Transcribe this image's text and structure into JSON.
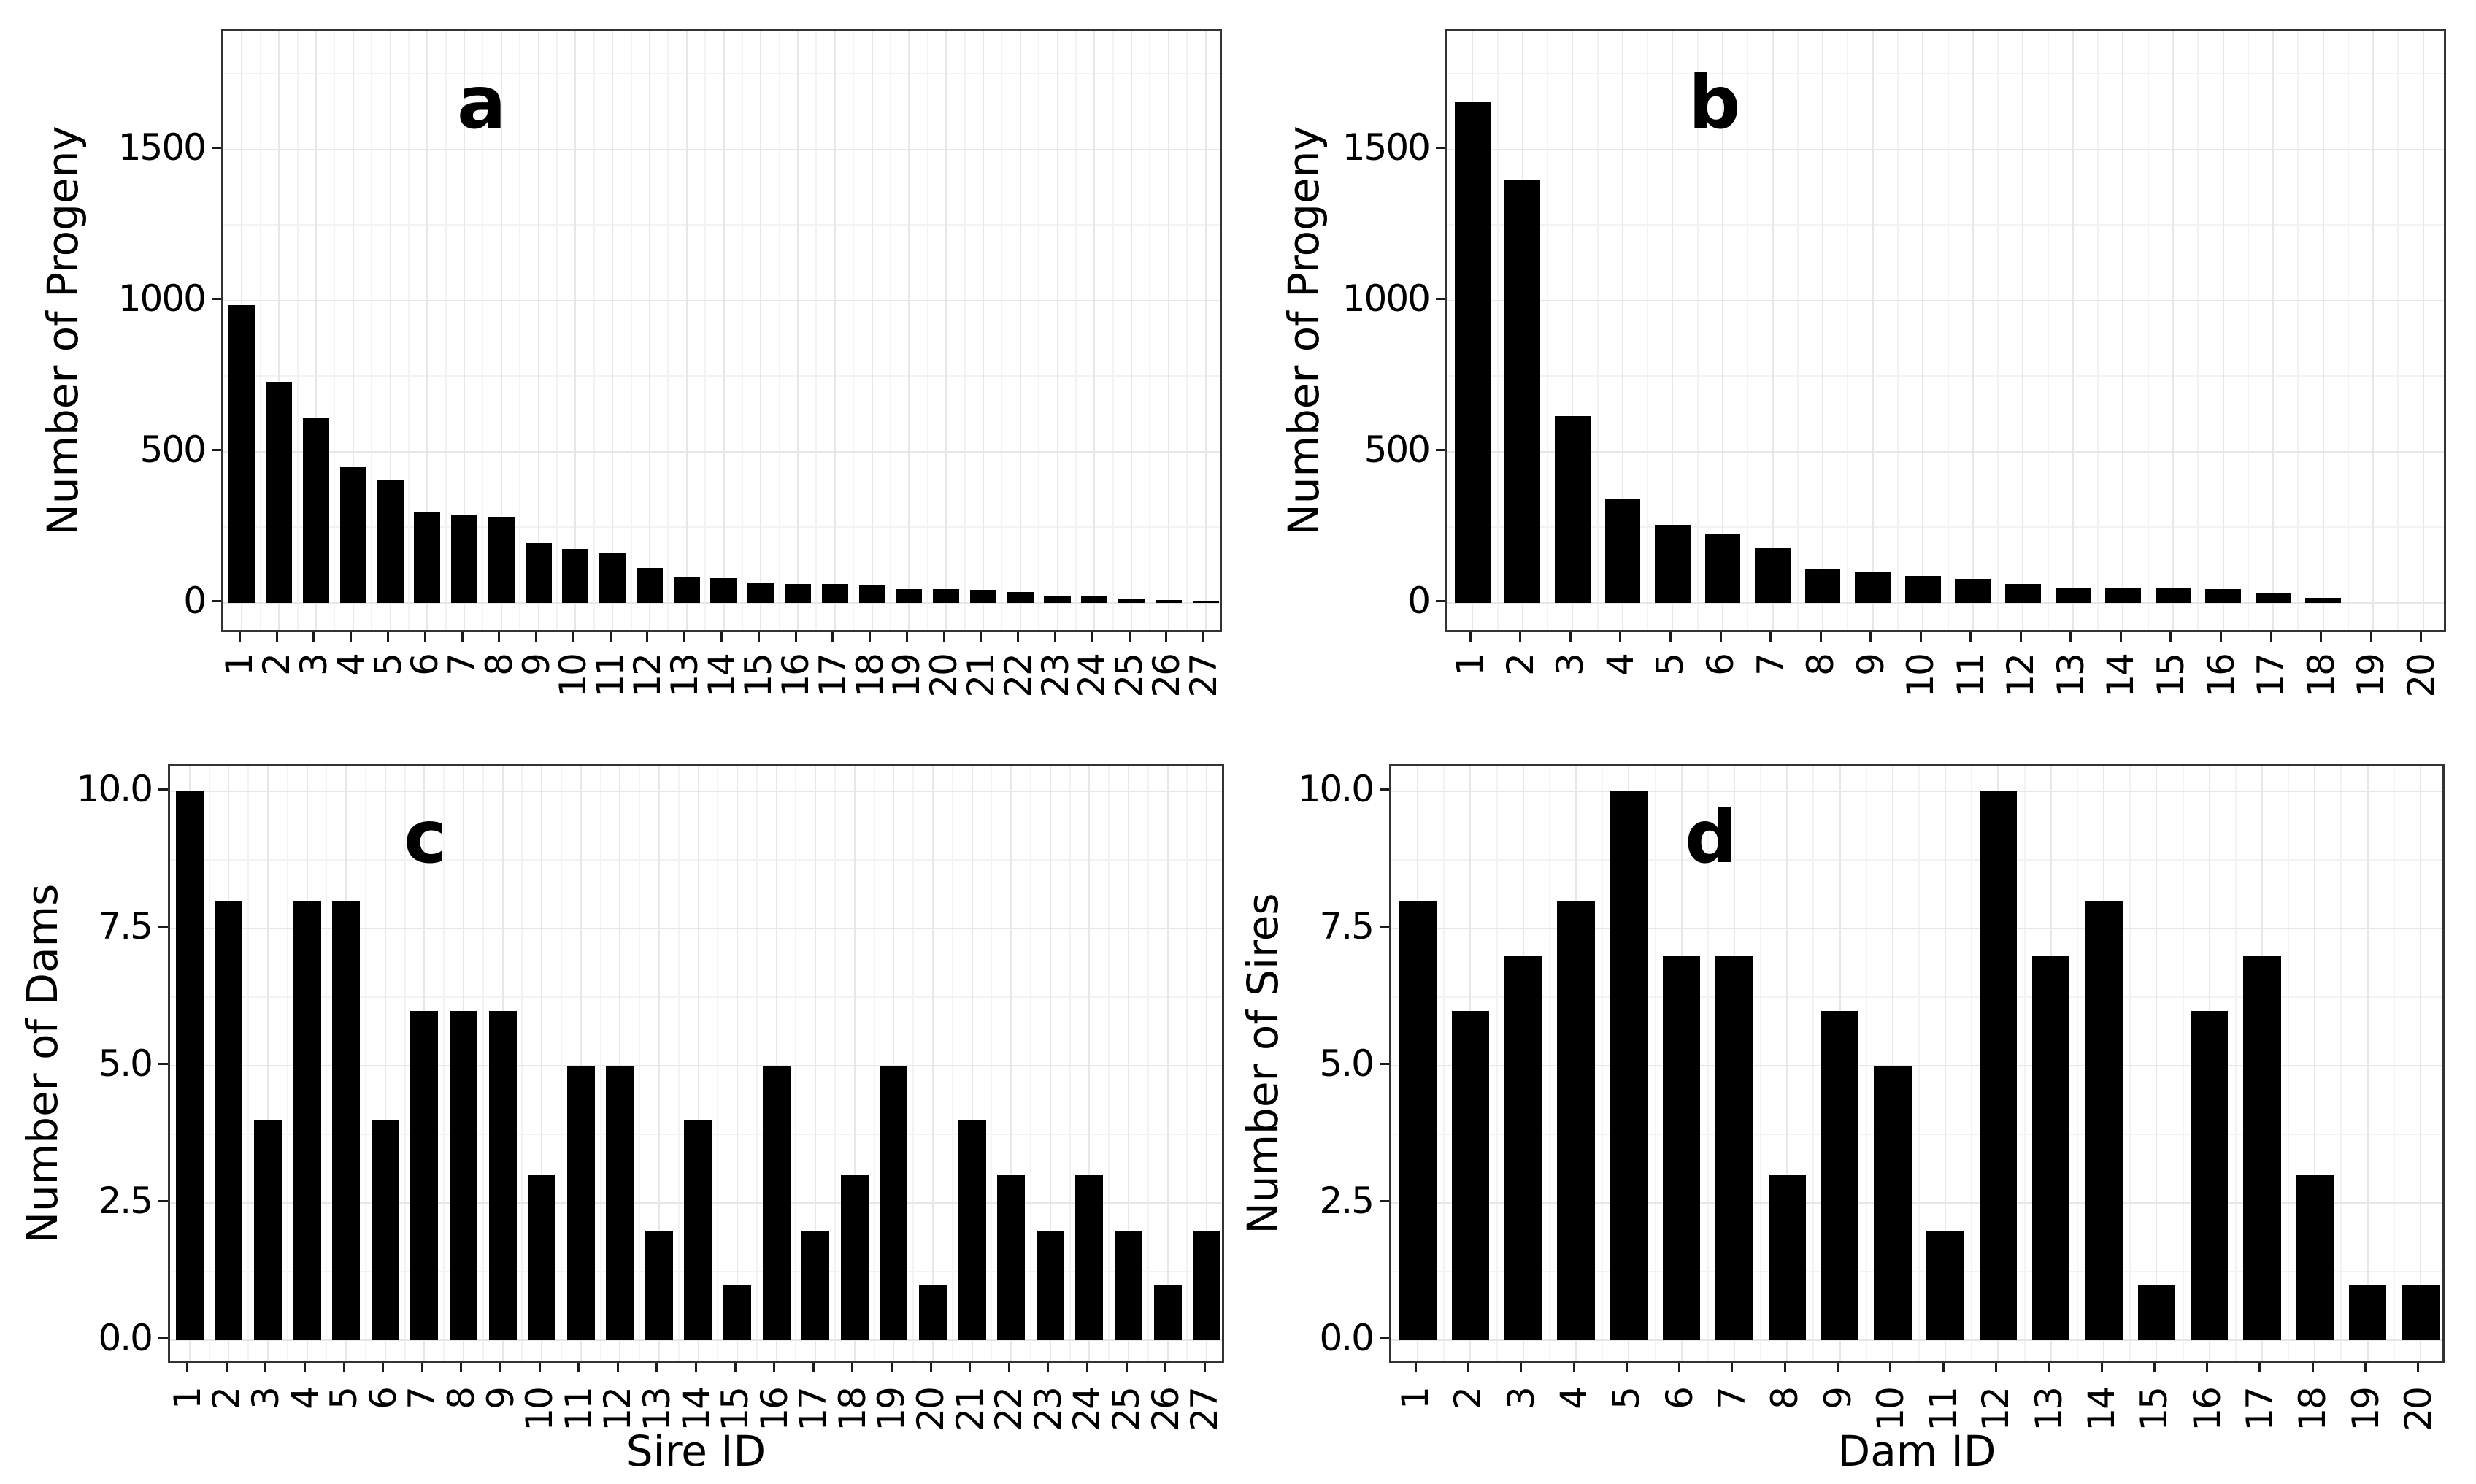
{
  "figure": {
    "background": "#ffffff",
    "bar_color": "#000000",
    "text_color": "#000000",
    "grid_major_color": "#e7e7e7",
    "grid_minor_color": "#f3f3f3",
    "panel_border_color": "#333333",
    "tick_color": "#1a1a1a"
  },
  "chart_data": [
    {
      "id": "a",
      "type": "bar",
      "panel_label": "a",
      "ylabel": "Number of Progeny",
      "xlabel": null,
      "categories": [
        "1",
        "2",
        "3",
        "4",
        "5",
        "6",
        "7",
        "8",
        "9",
        "10",
        "11",
        "12",
        "13",
        "14",
        "15",
        "16",
        "17",
        "18",
        "19",
        "20",
        "21",
        "22",
        "23",
        "24",
        "25",
        "26",
        "27"
      ],
      "values": [
        985,
        730,
        612,
        448,
        405,
        300,
        292,
        285,
        198,
        178,
        163,
        117,
        88,
        83,
        68,
        63,
        62,
        58,
        46,
        45,
        43,
        36,
        25,
        22,
        12,
        10,
        5
      ],
      "yticks": {
        "values": [
          0,
          500,
          1000,
          1500
        ],
        "labels": [
          "0",
          "500",
          "1000",
          "1500"
        ]
      },
      "minor_tick_values": [
        250,
        750,
        1250,
        1750
      ],
      "ylim": [
        0,
        1890
      ],
      "grid": true,
      "legend": "none"
    },
    {
      "id": "b",
      "type": "bar",
      "panel_label": "b",
      "ylabel": "Number of Progeny",
      "xlabel": null,
      "categories": [
        "1",
        "2",
        "3",
        "4",
        "5",
        "6",
        "7",
        "8",
        "9",
        "10",
        "11",
        "12",
        "13",
        "14",
        "15",
        "16",
        "17",
        "18",
        "19",
        "20"
      ],
      "values": [
        1655,
        1400,
        617,
        344,
        258,
        228,
        180,
        110,
        102,
        90,
        80,
        62,
        50,
        50,
        50,
        45,
        35,
        18,
        0,
        0
      ],
      "yticks": {
        "values": [
          0,
          500,
          1000,
          1500
        ],
        "labels": [
          "0",
          "500",
          "1000",
          "1500"
        ]
      },
      "minor_tick_values": [
        250,
        750,
        1250,
        1750
      ],
      "ylim": [
        0,
        1890
      ],
      "grid": true,
      "legend": "none"
    },
    {
      "id": "c",
      "type": "bar",
      "panel_label": "c",
      "ylabel": "Number of Dams",
      "xlabel": "Sire ID",
      "categories": [
        "1",
        "2",
        "3",
        "4",
        "5",
        "6",
        "7",
        "8",
        "9",
        "10",
        "11",
        "12",
        "13",
        "14",
        "15",
        "16",
        "17",
        "18",
        "19",
        "20",
        "21",
        "22",
        "23",
        "24",
        "25",
        "26",
        "27"
      ],
      "values": [
        10,
        8,
        4,
        8,
        8,
        4,
        6,
        6,
        6,
        3,
        5,
        5,
        2,
        4,
        1,
        5,
        2,
        3,
        5,
        1,
        4,
        3,
        2,
        3,
        2,
        1,
        2
      ],
      "yticks": {
        "values": [
          0,
          2.5,
          5,
          7.5,
          10
        ],
        "labels": [
          "0.0",
          "2.5",
          "5.0",
          "7.5",
          "10.0"
        ]
      },
      "minor_tick_values": [
        1.25,
        3.75,
        6.25,
        8.75
      ],
      "ylim": [
        0,
        10.47
      ],
      "grid": true,
      "legend": "none"
    },
    {
      "id": "d",
      "type": "bar",
      "panel_label": "d",
      "ylabel": "Number of Sires",
      "xlabel": "Dam ID",
      "categories": [
        "1",
        "2",
        "3",
        "4",
        "5",
        "6",
        "7",
        "8",
        "9",
        "10",
        "11",
        "12",
        "13",
        "14",
        "15",
        "16",
        "17",
        "18",
        "19",
        "20"
      ],
      "values": [
        8,
        6,
        7,
        8,
        10,
        7,
        7,
        3,
        6,
        5,
        2,
        10,
        7,
        8,
        1,
        6,
        7,
        3,
        1,
        1
      ],
      "yticks": {
        "values": [
          0,
          2.5,
          5,
          7.5,
          10
        ],
        "labels": [
          "0.0",
          "2.5",
          "5.0",
          "7.5",
          "10.0"
        ]
      },
      "minor_tick_values": [
        1.25,
        3.75,
        6.25,
        8.75
      ],
      "ylim": [
        0,
        10.47
      ],
      "grid": true,
      "legend": "none"
    }
  ]
}
